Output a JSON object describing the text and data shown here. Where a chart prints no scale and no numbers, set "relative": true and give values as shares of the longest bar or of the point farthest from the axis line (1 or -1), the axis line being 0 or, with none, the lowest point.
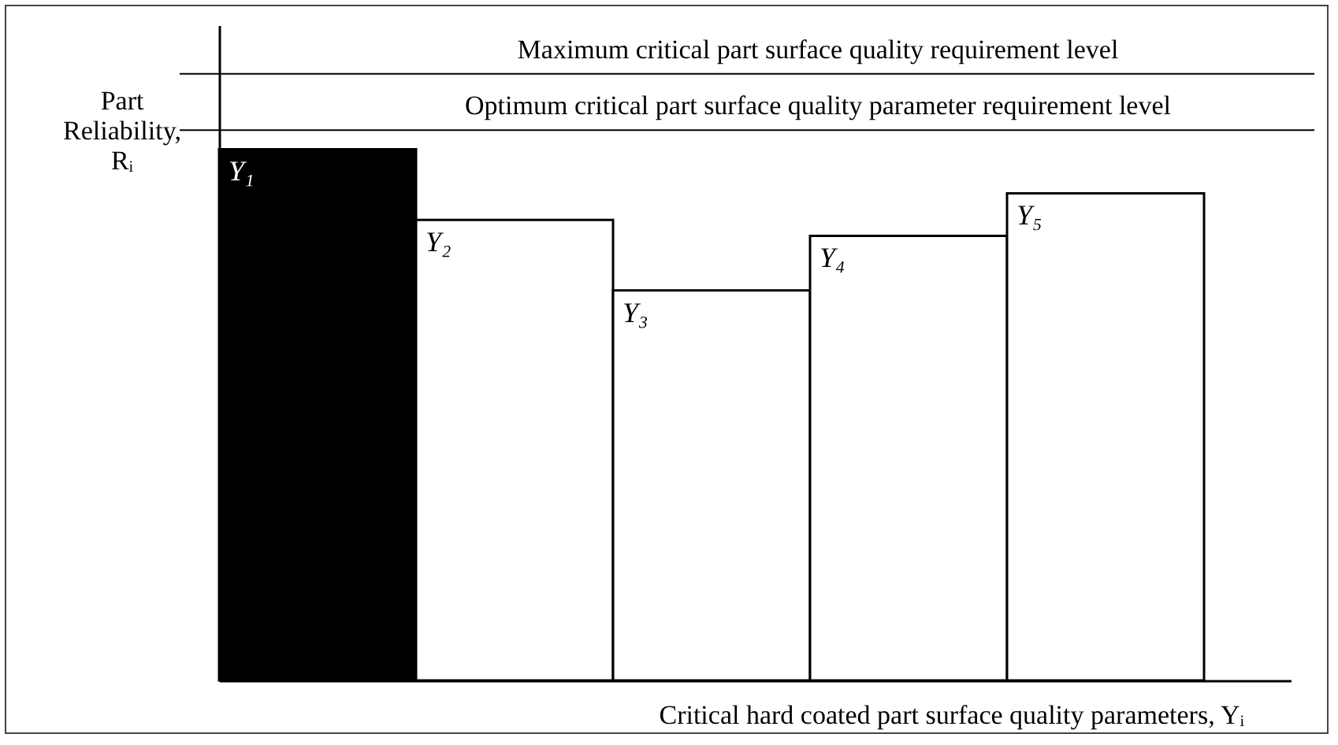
{
  "chart_data": {
    "type": "bar",
    "relative": true,
    "categories": [
      "Y₁",
      "Y₂",
      "Y₃",
      "Y₄",
      "Y₅"
    ],
    "values": [
      1,
      0.867,
      0.734,
      0.837,
      0.917
    ],
    "colors": [
      "#000000",
      "#ffffff",
      "#ffffff",
      "#ffffff",
      "#ffffff"
    ],
    "xlabel": "Critical hard coated part surface quality parameters, Yᵢ",
    "ylabel": "Part Reliability, Rᵢ",
    "ref_lines": [
      {
        "axis": "y",
        "value": 1.142,
        "label": "Maximum critical part surface quality requirement level"
      },
      {
        "axis": "y",
        "value": 1.036,
        "label": "Optimum critical part surface quality parameter requirement level"
      }
    ],
    "grid": false
  }
}
